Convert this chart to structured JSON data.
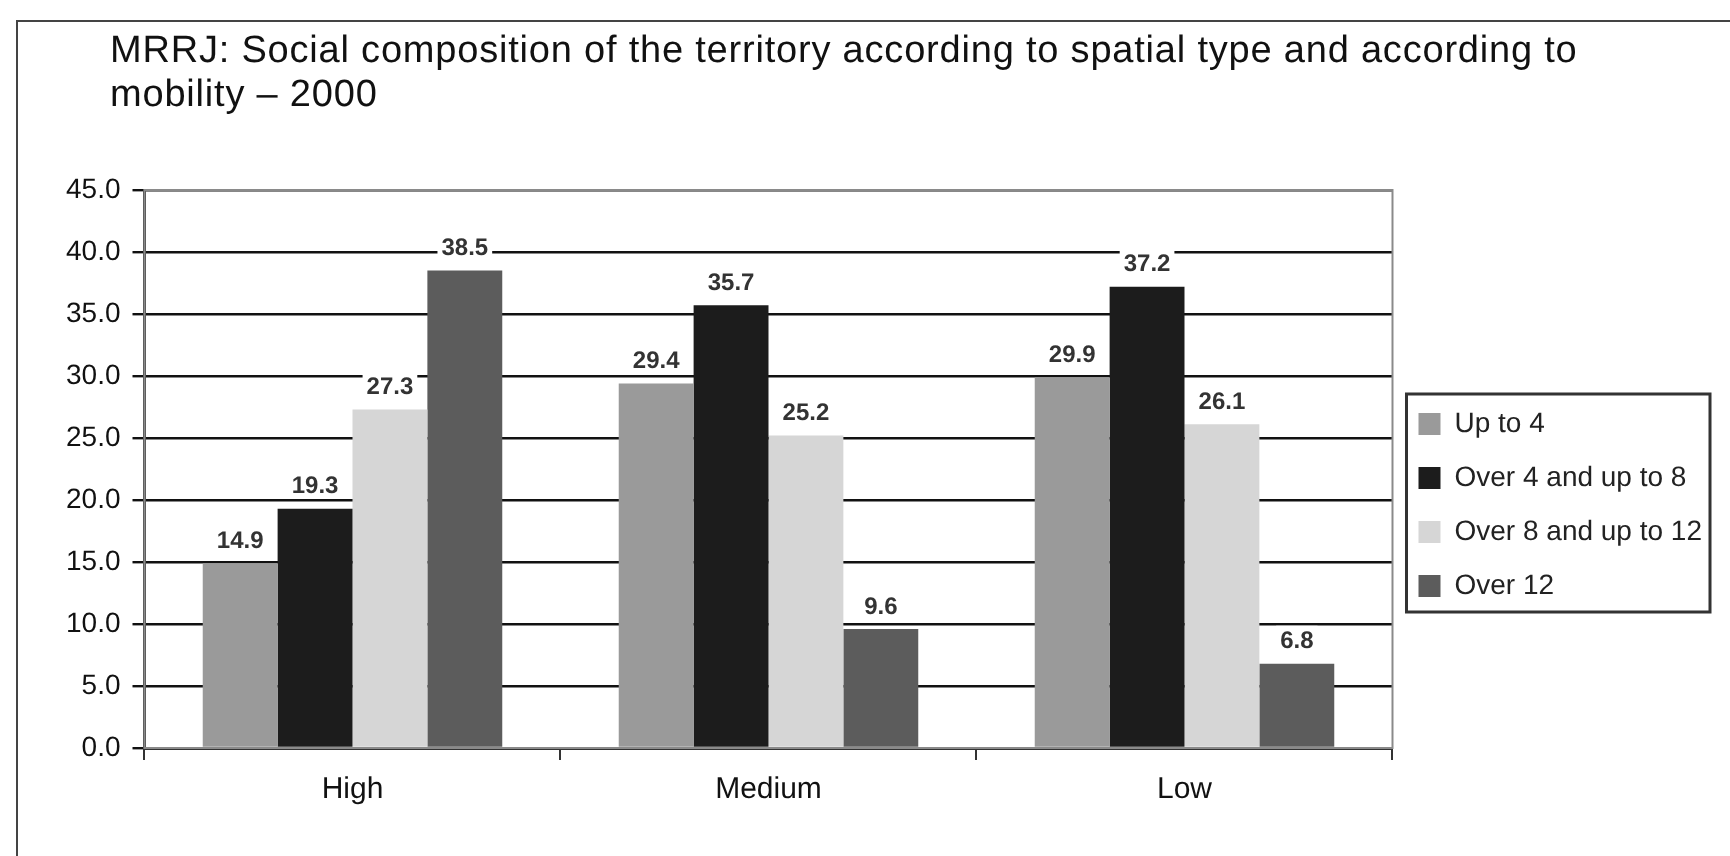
{
  "chart_data": {
    "type": "bar",
    "title": "MRRJ: Social composition of the territory according to spatial type and according to mobility – 2000",
    "categories": [
      "High",
      "Medium",
      "Low"
    ],
    "series": [
      {
        "name": "Up to 4",
        "color": "#9a9a9a",
        "values": [
          14.9,
          29.4,
          29.9
        ]
      },
      {
        "name": "Over 4 and up to 8",
        "color": "#1c1c1c",
        "values": [
          19.3,
          35.7,
          37.2
        ]
      },
      {
        "name": "Over 8 and up to 12",
        "color": "#d6d6d6",
        "values": [
          27.3,
          25.2,
          26.1
        ]
      },
      {
        "name": "Over 12",
        "color": "#5c5c5c",
        "values": [
          38.5,
          9.6,
          6.8
        ]
      }
    ],
    "ylim": [
      0,
      45
    ],
    "yticks": [
      {
        "value": 0,
        "label": "0.0"
      },
      {
        "value": 5,
        "label": "5.0"
      },
      {
        "value": 10,
        "label": "10.0"
      },
      {
        "value": 15,
        "label": "15.0"
      },
      {
        "value": 20,
        "label": "20.0"
      },
      {
        "value": 25,
        "label": "25.0"
      },
      {
        "value": 30,
        "label": "30.0"
      },
      {
        "value": 35,
        "label": "35.0"
      },
      {
        "value": 40,
        "label": "40.0"
      },
      {
        "value": 45,
        "label": "45.0"
      }
    ],
    "grid": "y",
    "legend": "right",
    "data_labels": true
  }
}
